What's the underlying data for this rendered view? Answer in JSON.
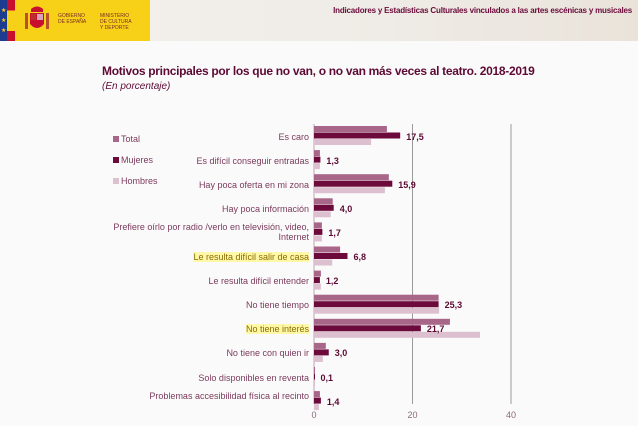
{
  "header": {
    "gov_line1": "Gobierno",
    "gov_line2": "de España",
    "ministry_line1": "Ministerio",
    "ministry_line2": "de Cultura",
    "ministry_line3": "y Deporte",
    "title": "Indicadores y Estadísticas Culturales vinculados a las artes escénicas y musicales"
  },
  "colors": {
    "total": "#a86688",
    "mujeres": "#6b0a3b",
    "hombres": "#dcc0cf",
    "highlight": "#fff8a8"
  },
  "chart_data": {
    "type": "bar",
    "orientation": "horizontal",
    "title": "Motivos principales por los que no van, o no van más veces al teatro. 2018-2019",
    "subtitle": "(En porcentaje)",
    "xlabel": "",
    "ylabel": "",
    "xlim": [
      0,
      40
    ],
    "x_ticks": [
      "0",
      "20",
      "40"
    ],
    "grid": true,
    "legend_position": "top-left",
    "categories": [
      "Es caro",
      "Es difícil conseguir entradas",
      "Hay poca oferta en mi zona",
      "Hay poca información",
      "Prefiere oírlo por radio /verlo en televisión, video, Internet",
      "Le resulta difícil salir de casa",
      "Le resulta difícil entender",
      "No tiene tiempo",
      "No tiene interés",
      "No tiene con quien ir",
      "Solo disponibles en reventa",
      "Problemas accesibilidad física al recinto"
    ],
    "highlighted_categories": [
      "Le resulta difícil salir de casa",
      "No tiene interés"
    ],
    "series": [
      {
        "name": "Total",
        "values": [
          14.8,
          1.2,
          15.2,
          3.8,
          1.6,
          5.3,
          1.4,
          25.3,
          27.6,
          2.4,
          0.1,
          1.2
        ]
      },
      {
        "name": "Mujeres",
        "values": [
          17.5,
          1.3,
          15.9,
          4.0,
          1.7,
          6.8,
          1.2,
          25.3,
          21.7,
          3.0,
          0.1,
          1.4
        ]
      },
      {
        "name": "Hombres",
        "values": [
          11.6,
          1.2,
          14.4,
          3.4,
          1.6,
          3.7,
          1.4,
          25.4,
          33.7,
          1.8,
          0.1,
          1.0
        ]
      }
    ],
    "data_labels": [
      "17,5",
      "1,3",
      "15,9",
      "4,0",
      "1,7",
      "6,8",
      "1,2",
      "25,3",
      "21,7",
      "3,0",
      "0,1",
      "1,4"
    ]
  }
}
